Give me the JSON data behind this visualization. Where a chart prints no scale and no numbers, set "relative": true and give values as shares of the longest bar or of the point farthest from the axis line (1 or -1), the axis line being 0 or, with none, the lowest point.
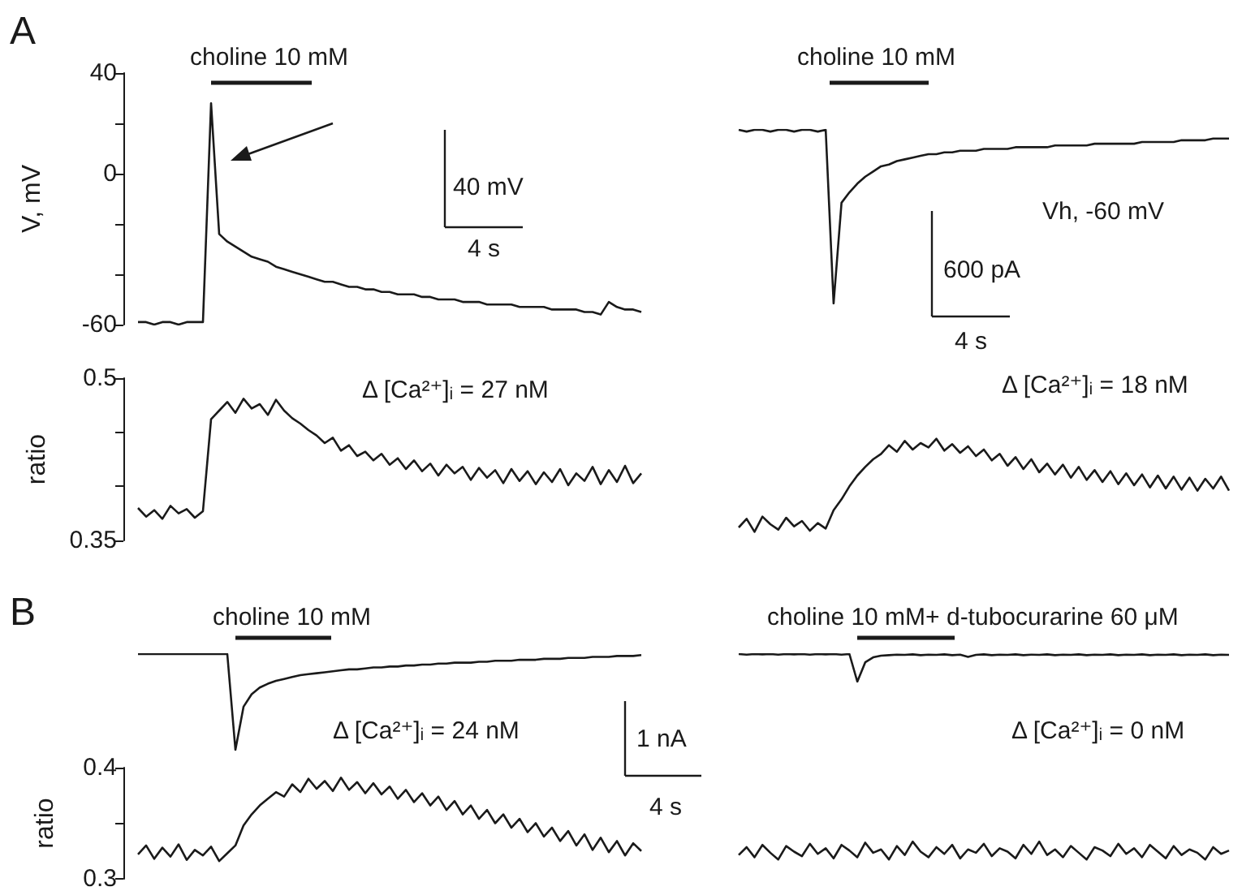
{
  "chart_data": [
    {
      "type": "line",
      "ylabel": "V, mV",
      "color": "#1a1a1a",
      "tick_labels": "y",
      "ylim": [
        -60,
        40
      ],
      "yticks": [
        -60,
        {
          "value": -40,
          "label": null
        },
        {
          "value": -20,
          "label": null
        },
        0,
        {
          "value": 20,
          "label": null
        },
        40
      ],
      "annotations": [
        "A",
        "choline 10 mM",
        "40 mV",
        "4 s"
      ],
      "categories": [
        null,
        null,
        null,
        null,
        null,
        null,
        null,
        null,
        null,
        null,
        null,
        null,
        null,
        null,
        null,
        null,
        null,
        null,
        null,
        null,
        null,
        null,
        null,
        null,
        null,
        null,
        null,
        null,
        null,
        null,
        null,
        null,
        null,
        null,
        null,
        null,
        null,
        null,
        null,
        null,
        null,
        null,
        null,
        null,
        null,
        null,
        null,
        null,
        null,
        null,
        null,
        null,
        null,
        null,
        null,
        null,
        null,
        null,
        null,
        null,
        null,
        null,
        null
      ],
      "values": [
        -59,
        -59,
        -60,
        -59,
        -59,
        -60,
        -59,
        -59,
        -59,
        28,
        -24,
        -27,
        -29,
        -31,
        -33,
        -34,
        -35,
        -37,
        -38,
        -39,
        -40,
        -41,
        -42,
        -43,
        -43,
        -44,
        -45,
        -45,
        -46,
        -46,
        -47,
        -47,
        -48,
        -48,
        -48,
        -49,
        -49,
        -50,
        -50,
        -50,
        -51,
        -51,
        -51,
        -52,
        -52,
        -52,
        -52,
        -53,
        -53,
        -53,
        -53,
        -54,
        -54,
        -54,
        -54,
        -55,
        -55,
        -56,
        -51,
        -53,
        -54,
        -54,
        -55
      ]
    },
    {
      "type": "line",
      "relative": true,
      "color": "#1a1a1a",
      "annotations": [
        "choline 10 mM",
        "Vh, -60 mV",
        "600 pA",
        "4 s"
      ],
      "categories": [
        null,
        null,
        null,
        null,
        null,
        null,
        null,
        null,
        null,
        null,
        null,
        null,
        null,
        null,
        null,
        null,
        null,
        null,
        null,
        null,
        null,
        null,
        null,
        null,
        null,
        null,
        null,
        null,
        null,
        null,
        null,
        null,
        null,
        null,
        null,
        null,
        null,
        null,
        null,
        null,
        null,
        null,
        null,
        null,
        null,
        null,
        null,
        null,
        null,
        null,
        null,
        null,
        null,
        null,
        null,
        null,
        null,
        null,
        null,
        null,
        null,
        null,
        null
      ],
      "values": [
        1,
        0.99,
        1,
        1,
        0.99,
        1,
        1,
        0.99,
        1,
        1,
        0.99,
        1,
        0,
        0.58,
        0.64,
        0.69,
        0.73,
        0.76,
        0.79,
        0.8,
        0.82,
        0.83,
        0.84,
        0.85,
        0.86,
        0.86,
        0.87,
        0.87,
        0.88,
        0.88,
        0.88,
        0.89,
        0.89,
        0.89,
        0.89,
        0.9,
        0.9,
        0.9,
        0.9,
        0.9,
        0.91,
        0.91,
        0.91,
        0.91,
        0.91,
        0.92,
        0.92,
        0.92,
        0.92,
        0.92,
        0.92,
        0.93,
        0.93,
        0.93,
        0.93,
        0.93,
        0.94,
        0.94,
        0.94,
        0.94,
        0.95,
        0.95,
        0.95
      ]
    },
    {
      "type": "line",
      "ylabel": "ratio",
      "color": "#1a1a1a",
      "tick_labels": "y",
      "ylim": [
        0.35,
        0.5
      ],
      "yticks": [
        0.35,
        {
          "value": 0.4,
          "label": null
        },
        {
          "value": 0.45,
          "label": null
        },
        0.5
      ],
      "annotations": [
        "Δ [Ca²⁺]ᵢ = 27 nM"
      ],
      "categories": [
        null,
        null,
        null,
        null,
        null,
        null,
        null,
        null,
        null,
        null,
        null,
        null,
        null,
        null,
        null,
        null,
        null,
        null,
        null,
        null,
        null,
        null,
        null,
        null,
        null,
        null,
        null,
        null,
        null,
        null,
        null,
        null,
        null,
        null,
        null,
        null,
        null,
        null,
        null,
        null,
        null,
        null,
        null,
        null,
        null,
        null,
        null,
        null,
        null,
        null,
        null,
        null,
        null,
        null,
        null,
        null,
        null,
        null,
        null,
        null,
        null,
        null,
        null
      ],
      "values": [
        0.38,
        0.372,
        0.378,
        0.37,
        0.382,
        0.375,
        0.379,
        0.371,
        0.377,
        0.462,
        0.47,
        0.478,
        0.468,
        0.481,
        0.472,
        0.476,
        0.466,
        0.48,
        0.47,
        0.463,
        0.458,
        0.452,
        0.447,
        0.44,
        0.445,
        0.433,
        0.438,
        0.428,
        0.432,
        0.424,
        0.43,
        0.42,
        0.426,
        0.416,
        0.424,
        0.414,
        0.421,
        0.41,
        0.42,
        0.412,
        0.418,
        0.406,
        0.417,
        0.408,
        0.415,
        0.403,
        0.416,
        0.405,
        0.414,
        0.402,
        0.413,
        0.404,
        0.416,
        0.401,
        0.412,
        0.405,
        0.418,
        0.402,
        0.415,
        0.404,
        0.419,
        0.403,
        0.412
      ]
    },
    {
      "type": "line",
      "color": "#1a1a1a",
      "tick_labels": false,
      "ylim": [
        0.35,
        0.5
      ],
      "annotations": [
        "Δ [Ca²⁺]ᵢ = 18 nM"
      ],
      "categories": [
        null,
        null,
        null,
        null,
        null,
        null,
        null,
        null,
        null,
        null,
        null,
        null,
        null,
        null,
        null,
        null,
        null,
        null,
        null,
        null,
        null,
        null,
        null,
        null,
        null,
        null,
        null,
        null,
        null,
        null,
        null,
        null,
        null,
        null,
        null,
        null,
        null,
        null,
        null,
        null,
        null,
        null,
        null,
        null,
        null,
        null,
        null,
        null,
        null,
        null,
        null,
        null,
        null,
        null,
        null,
        null,
        null,
        null,
        null,
        null,
        null,
        null,
        null
      ],
      "values": [
        0.362,
        0.37,
        0.358,
        0.372,
        0.365,
        0.36,
        0.371,
        0.363,
        0.368,
        0.359,
        0.366,
        0.361,
        0.378,
        0.388,
        0.4,
        0.41,
        0.418,
        0.425,
        0.43,
        0.438,
        0.432,
        0.442,
        0.434,
        0.44,
        0.436,
        0.444,
        0.433,
        0.439,
        0.431,
        0.437,
        0.428,
        0.434,
        0.424,
        0.43,
        0.419,
        0.427,
        0.416,
        0.425,
        0.413,
        0.421,
        0.411,
        0.42,
        0.408,
        0.418,
        0.406,
        0.415,
        0.404,
        0.414,
        0.402,
        0.412,
        0.401,
        0.411,
        0.399,
        0.41,
        0.398,
        0.409,
        0.397,
        0.408,
        0.396,
        0.407,
        0.398,
        0.409,
        0.396
      ]
    },
    {
      "type": "line",
      "relative": true,
      "color": "#1a1a1a",
      "annotations": [
        "B",
        "choline 10 mM",
        "1 nA",
        "4 s"
      ],
      "categories": [
        null,
        null,
        null,
        null,
        null,
        null,
        null,
        null,
        null,
        null,
        null,
        null,
        null,
        null,
        null,
        null,
        null,
        null,
        null,
        null,
        null,
        null,
        null,
        null,
        null,
        null,
        null,
        null,
        null,
        null,
        null,
        null,
        null,
        null,
        null,
        null,
        null,
        null,
        null,
        null,
        null,
        null,
        null,
        null,
        null,
        null,
        null,
        null,
        null,
        null,
        null,
        null,
        null,
        null,
        null,
        null,
        null,
        null,
        null,
        null,
        null,
        null,
        null
      ],
      "values": [
        1,
        1,
        1,
        1,
        1,
        1,
        1,
        1,
        1,
        1,
        1,
        1,
        0,
        0.45,
        0.58,
        0.65,
        0.69,
        0.72,
        0.74,
        0.76,
        0.78,
        0.79,
        0.8,
        0.81,
        0.82,
        0.83,
        0.84,
        0.84,
        0.85,
        0.86,
        0.86,
        0.87,
        0.87,
        0.88,
        0.88,
        0.89,
        0.89,
        0.9,
        0.9,
        0.91,
        0.91,
        0.91,
        0.92,
        0.92,
        0.93,
        0.93,
        0.93,
        0.94,
        0.94,
        0.94,
        0.95,
        0.95,
        0.95,
        0.96,
        0.96,
        0.96,
        0.97,
        0.97,
        0.97,
        0.98,
        0.98,
        0.98,
        0.99
      ]
    },
    {
      "type": "line",
      "relative": true,
      "color": "#1a1a1a",
      "annotations": [
        "choline 10 mM+ d-tubocurarine 60 μM"
      ],
      "categories": [
        null,
        null,
        null,
        null,
        null,
        null,
        null,
        null,
        null,
        null,
        null,
        null,
        null,
        null,
        null,
        null,
        null,
        null,
        null,
        null,
        null,
        null,
        null,
        null,
        null,
        null,
        null,
        null,
        null,
        null,
        null,
        null,
        null,
        null,
        null,
        null,
        null,
        null,
        null,
        null,
        null,
        null,
        null,
        null,
        null,
        null,
        null,
        null,
        null,
        null,
        null,
        null,
        null,
        null,
        null,
        null,
        null,
        null,
        null,
        null,
        null,
        null,
        null
      ],
      "values": [
        1,
        0.98,
        1,
        0.99,
        1,
        0.98,
        1,
        0.99,
        1,
        0.98,
        1,
        0.99,
        1,
        0.98,
        1,
        0,
        0.7,
        0.88,
        0.94,
        0.96,
        0.98,
        0.97,
        0.99,
        0.96,
        0.98,
        0.97,
        0.99,
        0.96,
        0.98,
        0.9,
        0.97,
        0.99,
        0.96,
        0.98,
        0.97,
        0.99,
        0.96,
        0.98,
        0.97,
        0.99,
        0.96,
        0.98,
        0.97,
        0.99,
        0.96,
        0.98,
        0.97,
        0.99,
        0.96,
        0.98,
        0.97,
        0.99,
        0.96,
        0.98,
        0.97,
        0.99,
        0.96,
        0.98,
        0.97,
        0.99,
        0.96,
        0.98,
        0.97
      ]
    },
    {
      "type": "line",
      "ylabel": "ratio",
      "color": "#1a1a1a",
      "tick_labels": "y",
      "ylim": [
        0.3,
        0.4
      ],
      "yticks": [
        0.3,
        {
          "value": 0.35,
          "label": null
        },
        0.4
      ],
      "annotations": [
        "Δ [Ca²⁺]ᵢ = 24 nM"
      ],
      "categories": [
        null,
        null,
        null,
        null,
        null,
        null,
        null,
        null,
        null,
        null,
        null,
        null,
        null,
        null,
        null,
        null,
        null,
        null,
        null,
        null,
        null,
        null,
        null,
        null,
        null,
        null,
        null,
        null,
        null,
        null,
        null,
        null,
        null,
        null,
        null,
        null,
        null,
        null,
        null,
        null,
        null,
        null,
        null,
        null,
        null,
        null,
        null,
        null,
        null,
        null,
        null,
        null,
        null,
        null,
        null,
        null,
        null,
        null,
        null,
        null,
        null,
        null,
        null
      ],
      "values": [
        0.322,
        0.33,
        0.318,
        0.328,
        0.32,
        0.331,
        0.317,
        0.326,
        0.321,
        0.329,
        0.316,
        0.323,
        0.33,
        0.348,
        0.358,
        0.366,
        0.372,
        0.378,
        0.374,
        0.385,
        0.378,
        0.39,
        0.381,
        0.388,
        0.379,
        0.391,
        0.38,
        0.387,
        0.377,
        0.386,
        0.376,
        0.383,
        0.372,
        0.38,
        0.369,
        0.377,
        0.366,
        0.374,
        0.362,
        0.37,
        0.358,
        0.366,
        0.354,
        0.362,
        0.35,
        0.358,
        0.346,
        0.354,
        0.342,
        0.35,
        0.338,
        0.346,
        0.334,
        0.343,
        0.33,
        0.34,
        0.326,
        0.337,
        0.324,
        0.334,
        0.321,
        0.332,
        0.325
      ]
    },
    {
      "type": "line",
      "color": "#1a1a1a",
      "tick_labels": false,
      "ylim": [
        0.3,
        0.4
      ],
      "annotations": [
        "Δ [Ca²⁺]ᵢ = 0 nM"
      ],
      "categories": [
        null,
        null,
        null,
        null,
        null,
        null,
        null,
        null,
        null,
        null,
        null,
        null,
        null,
        null,
        null,
        null,
        null,
        null,
        null,
        null,
        null,
        null,
        null,
        null,
        null,
        null,
        null,
        null,
        null,
        null,
        null,
        null,
        null,
        null,
        null,
        null,
        null,
        null,
        null,
        null,
        null,
        null,
        null,
        null,
        null,
        null,
        null,
        null,
        null,
        null,
        null,
        null,
        null,
        null,
        null,
        null,
        null,
        null,
        null,
        null,
        null,
        null,
        null
      ],
      "values": [
        0.322,
        0.329,
        0.32,
        0.331,
        0.324,
        0.318,
        0.33,
        0.325,
        0.321,
        0.332,
        0.323,
        0.328,
        0.319,
        0.331,
        0.326,
        0.32,
        0.333,
        0.324,
        0.327,
        0.318,
        0.33,
        0.322,
        0.334,
        0.325,
        0.32,
        0.329,
        0.323,
        0.331,
        0.319,
        0.327,
        0.324,
        0.332,
        0.321,
        0.328,
        0.325,
        0.319,
        0.331,
        0.323,
        0.334,
        0.322,
        0.327,
        0.32,
        0.33,
        0.324,
        0.318,
        0.329,
        0.326,
        0.321,
        0.332,
        0.323,
        0.328,
        0.32,
        0.331,
        0.325,
        0.319,
        0.33,
        0.322,
        0.327,
        0.324,
        0.318,
        0.329,
        0.323,
        0.326
      ]
    }
  ]
}
